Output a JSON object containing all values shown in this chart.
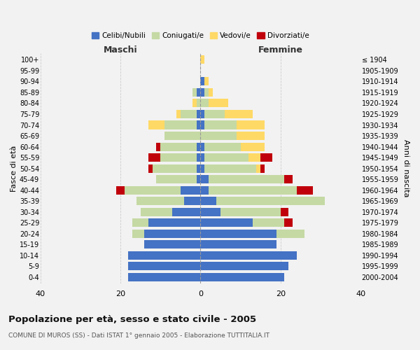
{
  "age_groups": [
    "0-4",
    "5-9",
    "10-14",
    "15-19",
    "20-24",
    "25-29",
    "30-34",
    "35-39",
    "40-44",
    "45-49",
    "50-54",
    "55-59",
    "60-64",
    "65-69",
    "70-74",
    "75-79",
    "80-84",
    "85-89",
    "90-94",
    "95-99",
    "100+"
  ],
  "birth_years": [
    "2000-2004",
    "1995-1999",
    "1990-1994",
    "1985-1989",
    "1980-1984",
    "1975-1979",
    "1970-1974",
    "1965-1969",
    "1960-1964",
    "1955-1959",
    "1950-1954",
    "1945-1949",
    "1940-1944",
    "1935-1939",
    "1930-1934",
    "1925-1929",
    "1920-1924",
    "1915-1919",
    "1910-1914",
    "1905-1909",
    "≤ 1904"
  ],
  "maschi": {
    "celibi": [
      18,
      18,
      18,
      14,
      14,
      13,
      7,
      4,
      5,
      1,
      1,
      1,
      1,
      0,
      1,
      1,
      0,
      1,
      0,
      0,
      0
    ],
    "coniugati": [
      0,
      0,
      0,
      0,
      3,
      4,
      8,
      12,
      14,
      10,
      11,
      9,
      9,
      9,
      8,
      4,
      1,
      1,
      0,
      0,
      0
    ],
    "vedovi": [
      0,
      0,
      0,
      0,
      0,
      0,
      0,
      0,
      0,
      0,
      0,
      0,
      0,
      0,
      4,
      1,
      1,
      0,
      0,
      0,
      0
    ],
    "divorziati": [
      0,
      0,
      0,
      0,
      0,
      0,
      0,
      0,
      2,
      0,
      1,
      3,
      1,
      0,
      0,
      0,
      0,
      0,
      0,
      0,
      0
    ]
  },
  "femmine": {
    "nubili": [
      21,
      22,
      24,
      19,
      19,
      13,
      5,
      4,
      2,
      2,
      1,
      1,
      1,
      0,
      1,
      1,
      0,
      1,
      1,
      0,
      0
    ],
    "coniugate": [
      0,
      0,
      0,
      0,
      7,
      8,
      15,
      27,
      22,
      19,
      13,
      11,
      9,
      9,
      8,
      5,
      2,
      1,
      0,
      0,
      0
    ],
    "vedove": [
      0,
      0,
      0,
      0,
      0,
      0,
      0,
      0,
      0,
      0,
      1,
      3,
      6,
      7,
      7,
      7,
      5,
      1,
      1,
      0,
      1
    ],
    "divorziate": [
      0,
      0,
      0,
      0,
      0,
      2,
      2,
      0,
      4,
      2,
      1,
      3,
      0,
      0,
      0,
      0,
      0,
      0,
      0,
      0,
      0
    ]
  },
  "colors": {
    "celibi": "#4472C4",
    "coniugati": "#C5D9A4",
    "vedovi": "#FFD966",
    "divorziati": "#C0000B"
  },
  "xlim": 40,
  "title": "Popolazione per età, sesso e stato civile - 2005",
  "subtitle": "COMUNE DI MUROS (SS) - Dati ISTAT 1° gennaio 2005 - Elaborazione TUTTITALIA.IT",
  "xlabel_maschi": "Maschi",
  "xlabel_femmine": "Femmine",
  "ylabel_left": "Fasce di età",
  "ylabel_right": "Anni di nascita",
  "legend_labels": [
    "Celibi/Nubili",
    "Coniugati/e",
    "Vedovi/e",
    "Divorziati/e"
  ],
  "bg_color": "#F2F2F2"
}
